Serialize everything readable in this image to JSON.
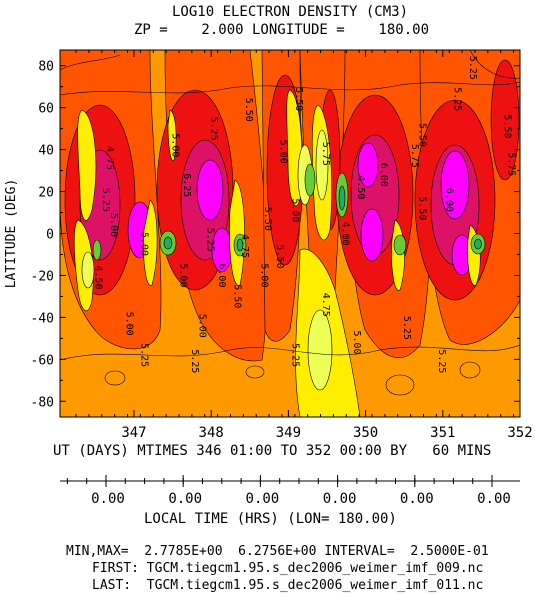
{
  "header": {
    "title": "LOG10 ELECTRON DENSITY (CM3)",
    "subtitle": "ZP =    2.000 LONGITUDE =    180.00"
  },
  "chart_data": {
    "type": "heatmap",
    "title": "LOG10 ELECTRON DENSITY (CM3)",
    "ylabel": "LATITUDE (DEG)",
    "xlabel": "UT (DAYS) MTIMES 346 01:00 TO 352 00:00 BY   60 MINS",
    "x_ticks": [
      "347",
      "348",
      "349",
      "350",
      "351",
      "352"
    ],
    "x_tick_values": [
      347,
      348,
      349,
      350,
      351,
      352
    ],
    "xlim": [
      346.0417,
      352.0
    ],
    "y_ticks": [
      "80",
      "60",
      "40",
      "20",
      "0",
      "-20",
      "-40",
      "-60",
      "-80"
    ],
    "y_tick_values": [
      80,
      60,
      40,
      20,
      0,
      -20,
      -40,
      -60,
      -80
    ],
    "ylim": [
      -87.5,
      87.5
    ],
    "local_time_axis": {
      "label": "LOCAL TIME (HRS) (LON= 180.00)",
      "tick_labels": [
        "0.00",
        "0.00",
        "0.00",
        "0.00",
        "0.00",
        "0.00"
      ],
      "tick_values": [
        347,
        348,
        349,
        350,
        351,
        352
      ]
    },
    "value_range": {
      "min": 2.7785,
      "max": 6.2756,
      "interval": 0.25
    },
    "contour_labels": [
      {
        "text": "5.25",
        "x": 351.35,
        "y": 79
      },
      {
        "text": "5.25",
        "x": 351.15,
        "y": 64
      },
      {
        "text": "5.50",
        "x": 351.8,
        "y": 51
      },
      {
        "text": "5.50",
        "x": 350.7,
        "y": 47
      },
      {
        "text": "5.50",
        "x": 348.45,
        "y": 59
      },
      {
        "text": "5.50",
        "x": 349.1,
        "y": 64
      },
      {
        "text": "5.25",
        "x": 348.0,
        "y": 50
      },
      {
        "text": "5.00",
        "x": 347.5,
        "y": 42
      },
      {
        "text": "5.75",
        "x": 349.45,
        "y": 38
      },
      {
        "text": "5.00",
        "x": 348.9,
        "y": 39
      },
      {
        "text": "5.75",
        "x": 350.6,
        "y": 37
      },
      {
        "text": "5.75",
        "x": 351.85,
        "y": 33
      },
      {
        "text": "4.75",
        "x": 346.65,
        "y": 36
      },
      {
        "text": "6.25",
        "x": 347.65,
        "y": 23
      },
      {
        "text": "6.00",
        "x": 350.2,
        "y": 28
      },
      {
        "text": "6.00",
        "x": 351.05,
        "y": 16
      },
      {
        "text": "4.50",
        "x": 349.9,
        "y": 22
      },
      {
        "text": "5.25",
        "x": 346.6,
        "y": 16
      },
      {
        "text": "5.50",
        "x": 350.7,
        "y": 12
      },
      {
        "text": "5.00",
        "x": 349.05,
        "y": 11
      },
      {
        "text": "5.50",
        "x": 348.7,
        "y": 7
      },
      {
        "text": "5.00",
        "x": 346.7,
        "y": 4
      },
      {
        "text": "4.00",
        "x": 349.7,
        "y": 0
      },
      {
        "text": "5.25",
        "x": 347.95,
        "y": -3
      },
      {
        "text": "5.00",
        "x": 347.1,
        "y": -5
      },
      {
        "text": "4.75",
        "x": 348.4,
        "y": -6
      },
      {
        "text": "5.50",
        "x": 348.85,
        "y": -11
      },
      {
        "text": "6.00",
        "x": 348.1,
        "y": -20
      },
      {
        "text": "4.50",
        "x": 346.5,
        "y": -21
      },
      {
        "text": "5.00",
        "x": 347.6,
        "y": -20
      },
      {
        "text": "5.00",
        "x": 348.65,
        "y": -20
      },
      {
        "text": "5.50",
        "x": 348.3,
        "y": -30
      },
      {
        "text": "4.75",
        "x": 349.45,
        "y": -34
      },
      {
        "text": "5.00",
        "x": 346.9,
        "y": -43
      },
      {
        "text": "5.00",
        "x": 347.85,
        "y": -44
      },
      {
        "text": "5.25",
        "x": 350.5,
        "y": -45
      },
      {
        "text": "5.00",
        "x": 349.85,
        "y": -52
      },
      {
        "text": "5.25",
        "x": 347.1,
        "y": -58
      },
      {
        "text": "5.25",
        "x": 347.75,
        "y": -61
      },
      {
        "text": "5.25",
        "x": 349.05,
        "y": -58
      },
      {
        "text": "5.25",
        "x": 350.95,
        "y": -61
      }
    ],
    "colors": {
      "level_4.0": "#22aa66",
      "level_4.5": "#66cc33",
      "level_4.75": "#eeff55",
      "level_5.0": "#ffee00",
      "level_5.25": "#ff9900",
      "level_5.5": "#ff5500",
      "level_5.75": "#ee1111",
      "level_6.0": "#dd1166",
      "level_6.25": "#ff00ff"
    }
  },
  "footer": {
    "stats": "MIN,MAX=  2.7785E+00  6.2756E+00 INTERVAL=  2.5000E-01",
    "first_line": "FIRST: TGCM.tiegcm1.95.s_dec2006_weimer_imf_009.nc",
    "last_line": "LAST:  TGCM.tiegcm1.95.s_dec2006_weimer_imf_011.nc"
  }
}
